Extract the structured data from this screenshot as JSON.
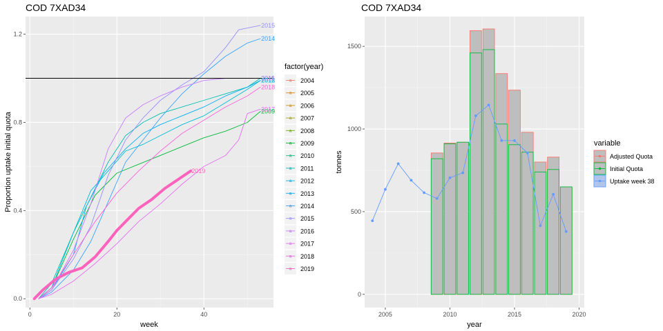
{
  "chart_data": [
    {
      "type": "line",
      "title": "COD 7XAD34",
      "xlabel": "week",
      "ylabel": "Proportion uptake initial quota",
      "xlim": [
        -1,
        56
      ],
      "ylim": [
        -0.04,
        1.28
      ],
      "x_ticks": [
        0,
        20,
        40
      ],
      "y_ticks": [
        0.0,
        0.4,
        0.8,
        1.2
      ],
      "y_tick_labels": [
        "0.0",
        "0.4",
        "0.8",
        "1.2"
      ],
      "grid": true,
      "hline": 1.0,
      "legend": {
        "title": "factor(year)",
        "placement": "right"
      },
      "series": [
        {
          "name": "2004",
          "color": "#F8766D",
          "points": []
        },
        {
          "name": "2005",
          "color": "#E58700",
          "points": []
        },
        {
          "name": "2006",
          "color": "#C99800",
          "points": []
        },
        {
          "name": "2007",
          "color": "#A3A500",
          "points": []
        },
        {
          "name": "2008",
          "color": "#6BB100",
          "points": []
        },
        {
          "name": "2009",
          "color": "#00BA38",
          "end_label": "2009",
          "points": [
            [
              2,
              0.0
            ],
            [
              5,
              0.05
            ],
            [
              10,
              0.27
            ],
            [
              15,
              0.47
            ],
            [
              20,
              0.57
            ],
            [
              25,
              0.61
            ],
            [
              30,
              0.65
            ],
            [
              35,
              0.69
            ],
            [
              40,
              0.73
            ],
            [
              45,
              0.76
            ],
            [
              50,
              0.8
            ],
            [
              53,
              0.85
            ]
          ]
        },
        {
          "name": "2010",
          "color": "#00BF7D",
          "points": []
        },
        {
          "name": "2011",
          "color": "#00C0AF",
          "end_label": "2011",
          "points": [
            [
              2,
              0.0
            ],
            [
              5,
              0.07
            ],
            [
              10,
              0.3
            ],
            [
              14,
              0.46
            ],
            [
              18,
              0.62
            ],
            [
              22,
              0.74
            ],
            [
              26,
              0.8
            ],
            [
              30,
              0.84
            ],
            [
              35,
              0.87
            ],
            [
              40,
              0.9
            ],
            [
              45,
              0.93
            ],
            [
              50,
              0.96
            ],
            [
              53,
              1.0
            ]
          ]
        },
        {
          "name": "2012",
          "color": "#00BCD8",
          "end_label": "2012",
          "points": [
            [
              2,
              0.0
            ],
            [
              5,
              0.05
            ],
            [
              10,
              0.3
            ],
            [
              14,
              0.49
            ],
            [
              18,
              0.58
            ],
            [
              22,
              0.67
            ],
            [
              26,
              0.7
            ],
            [
              30,
              0.74
            ],
            [
              35,
              0.79
            ],
            [
              40,
              0.83
            ],
            [
              45,
              0.89
            ],
            [
              50,
              0.95
            ],
            [
              53,
              0.99
            ]
          ]
        },
        {
          "name": "2013",
          "color": "#00B0F6",
          "end_label": "2013",
          "points": [
            [
              2,
              0.0
            ],
            [
              5,
              0.04
            ],
            [
              10,
              0.2
            ],
            [
              13,
              0.42
            ],
            [
              17,
              0.57
            ],
            [
              22,
              0.68
            ],
            [
              26,
              0.75
            ],
            [
              30,
              0.79
            ],
            [
              35,
              0.83
            ],
            [
              40,
              0.87
            ],
            [
              45,
              0.92
            ],
            [
              50,
              0.96
            ],
            [
              53,
              0.99
            ]
          ]
        },
        {
          "name": "2014",
          "color": "#35A2FF",
          "end_label": "2014",
          "points": [
            [
              2,
              0.0
            ],
            [
              5,
              0.03
            ],
            [
              10,
              0.13
            ],
            [
              14,
              0.26
            ],
            [
              18,
              0.44
            ],
            [
              22,
              0.62
            ],
            [
              26,
              0.72
            ],
            [
              30,
              0.82
            ],
            [
              35,
              0.93
            ],
            [
              40,
              1.02
            ],
            [
              45,
              1.1
            ],
            [
              50,
              1.16
            ],
            [
              53,
              1.18
            ]
          ]
        },
        {
          "name": "2015",
          "color": "#9590FF",
          "end_label": "2015",
          "points": [
            [
              2,
              0.0
            ],
            [
              5,
              0.04
            ],
            [
              10,
              0.18
            ],
            [
              14,
              0.33
            ],
            [
              18,
              0.56
            ],
            [
              22,
              0.72
            ],
            [
              26,
              0.82
            ],
            [
              30,
              0.9
            ],
            [
              35,
              0.97
            ],
            [
              40,
              1.03
            ],
            [
              45,
              1.14
            ],
            [
              48,
              1.22
            ],
            [
              53,
              1.24
            ]
          ]
        },
        {
          "name": "2016",
          "color": "#C77CFF",
          "end_label": "2016",
          "points": [
            [
              2,
              0.0
            ],
            [
              5,
              0.04
            ],
            [
              10,
              0.22
            ],
            [
              14,
              0.43
            ],
            [
              18,
              0.68
            ],
            [
              22,
              0.82
            ],
            [
              26,
              0.88
            ],
            [
              30,
              0.92
            ],
            [
              35,
              0.96
            ],
            [
              40,
              0.99
            ],
            [
              45,
              1.0
            ],
            [
              53,
              1.0
            ]
          ]
        },
        {
          "name": "2017",
          "color": "#E76BF3",
          "end_label": "2017",
          "points": [
            [
              2,
              0.0
            ],
            [
              5,
              0.02
            ],
            [
              10,
              0.08
            ],
            [
              15,
              0.16
            ],
            [
              20,
              0.25
            ],
            [
              25,
              0.35
            ],
            [
              30,
              0.43
            ],
            [
              35,
              0.52
            ],
            [
              40,
              0.6
            ],
            [
              45,
              0.65
            ],
            [
              48,
              0.72
            ],
            [
              50,
              0.84
            ],
            [
              53,
              0.86
            ]
          ]
        },
        {
          "name": "2018",
          "color": "#FA62DB",
          "end_label": "2018",
          "points": [
            [
              2,
              0.0
            ],
            [
              5,
              0.05
            ],
            [
              10,
              0.2
            ],
            [
              15,
              0.35
            ],
            [
              20,
              0.48
            ],
            [
              25,
              0.58
            ],
            [
              30,
              0.67
            ],
            [
              35,
              0.75
            ],
            [
              40,
              0.81
            ],
            [
              45,
              0.87
            ],
            [
              50,
              0.92
            ],
            [
              53,
              0.96
            ]
          ]
        },
        {
          "name": "2019",
          "color": "#FF62BC",
          "end_label": "2019",
          "thick": true,
          "points": [
            [
              1,
              0.0
            ],
            [
              3,
              0.04
            ],
            [
              6,
              0.09
            ],
            [
              9,
              0.12
            ],
            [
              12,
              0.14
            ],
            [
              15,
              0.19
            ],
            [
              18,
              0.26
            ],
            [
              20,
              0.31
            ],
            [
              22,
              0.35
            ],
            [
              25,
              0.41
            ],
            [
              28,
              0.45
            ],
            [
              31,
              0.5
            ],
            [
              34,
              0.54
            ],
            [
              37,
              0.58
            ]
          ]
        }
      ]
    },
    {
      "type": "bar",
      "title": "COD 7XAD34",
      "xlabel": "year",
      "ylabel": "tonnes",
      "xlim": [
        2003.4,
        2020.4
      ],
      "ylim": [
        -80,
        1680
      ],
      "x_ticks": [
        2005,
        2010,
        2015,
        2020
      ],
      "y_ticks": [
        0,
        500,
        1000,
        1500
      ],
      "grid": true,
      "legend": {
        "title": "variable",
        "placement": "right",
        "entries": [
          "Adjusted Quota",
          "Initial Quota",
          "Uptake week 38"
        ]
      },
      "colors": {
        "adjusted": "#F8766D",
        "initial": "#00BA38",
        "uptake": "#619CFF",
        "bar_fill": "#BEBEBE"
      },
      "bars": {
        "years": [
          2009,
          2010,
          2011,
          2012,
          2013,
          2014,
          2015,
          2016,
          2017,
          2018,
          2019
        ],
        "adjusted_quota": [
          855,
          915,
          920,
          1595,
          1605,
          1335,
          1235,
          980,
          800,
          830,
          650
        ],
        "initial_quota": [
          820,
          910,
          920,
          1460,
          1480,
          1030,
          905,
          860,
          740,
          755,
          650
        ]
      },
      "uptake_week_38": {
        "years": [
          2004,
          2005,
          2006,
          2007,
          2008,
          2009,
          2010,
          2011,
          2012,
          2013,
          2014,
          2015,
          2016,
          2017,
          2018,
          2019
        ],
        "values": [
          445,
          635,
          790,
          690,
          615,
          580,
          705,
          735,
          1080,
          1145,
          930,
          930,
          855,
          415,
          605,
          380
        ]
      }
    }
  ]
}
